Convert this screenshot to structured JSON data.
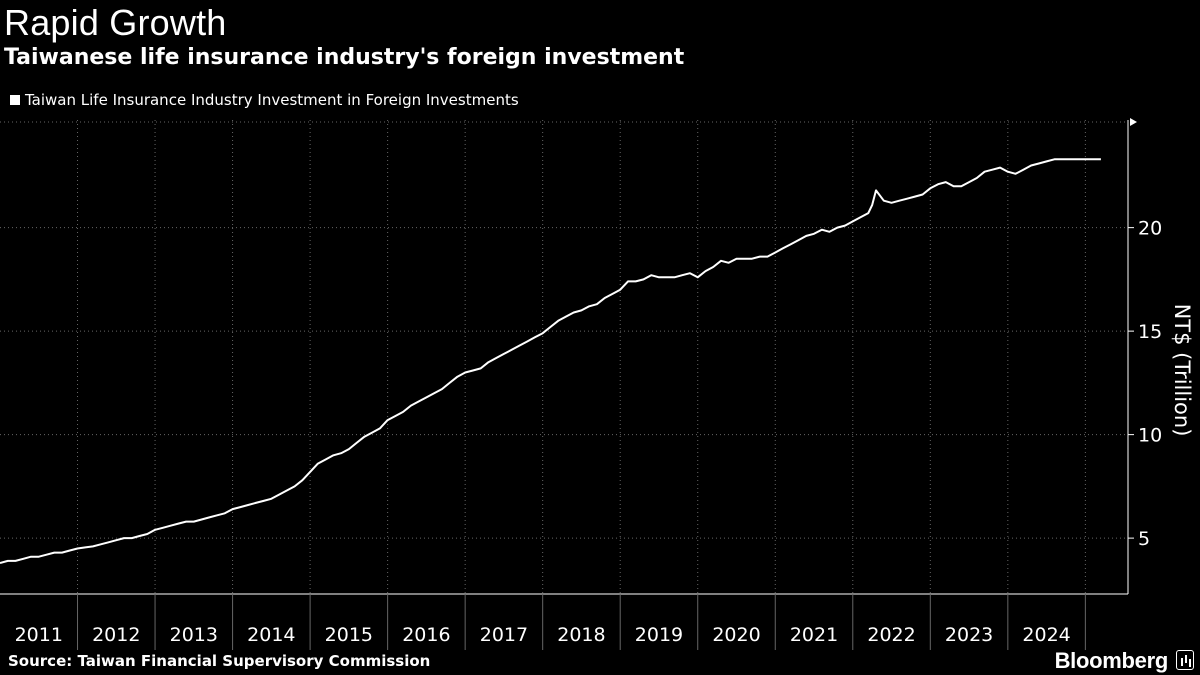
{
  "header": {
    "title": "Rapid Growth",
    "subtitle": "Taiwanese life insurance industry's foreign investment"
  },
  "footer": {
    "source": "Source: Taiwan Financial Supervisory Commission",
    "brand": "Bloomberg"
  },
  "colors": {
    "background": "#000000",
    "line": "#ffffff",
    "grid": "#666666"
  },
  "chart_data": {
    "type": "line",
    "title": "Rapid Growth",
    "subtitle": "Taiwanese life insurance industry's foreign investment",
    "xlabel": "",
    "ylabel": "NT$ (Trillion)",
    "ylim": [
      2.3,
      25.2
    ],
    "yticks": [
      5,
      10,
      15,
      20
    ],
    "xlim": [
      2011.0,
      2025.55
    ],
    "categories": [
      "2011",
      "2012",
      "2013",
      "2014",
      "2015",
      "2016",
      "2017",
      "2018",
      "2019",
      "2020",
      "2021",
      "2022",
      "2023",
      "2024"
    ],
    "grid": true,
    "legend_position": "top-left",
    "series": [
      {
        "name": "Taiwan Life Insurance Industry Investment in Foreign Investments",
        "x": [
          2011.0,
          2011.1,
          2011.2,
          2011.3,
          2011.4,
          2011.5,
          2011.6,
          2011.7,
          2011.8,
          2011.9,
          2012.0,
          2012.1,
          2012.2,
          2012.3,
          2012.4,
          2012.5,
          2012.6,
          2012.7,
          2012.8,
          2012.9,
          2013.0,
          2013.1,
          2013.2,
          2013.3,
          2013.4,
          2013.5,
          2013.6,
          2013.7,
          2013.8,
          2013.9,
          2014.0,
          2014.1,
          2014.2,
          2014.3,
          2014.4,
          2014.5,
          2014.6,
          2014.7,
          2014.8,
          2014.9,
          2015.0,
          2015.1,
          2015.2,
          2015.3,
          2015.4,
          2015.5,
          2015.6,
          2015.7,
          2015.8,
          2015.9,
          2016.0,
          2016.1,
          2016.2,
          2016.3,
          2016.4,
          2016.5,
          2016.6,
          2016.7,
          2016.8,
          2016.9,
          2017.0,
          2017.1,
          2017.2,
          2017.3,
          2017.4,
          2017.5,
          2017.6,
          2017.7,
          2017.8,
          2017.9,
          2018.0,
          2018.1,
          2018.2,
          2018.3,
          2018.4,
          2018.5,
          2018.6,
          2018.7,
          2018.8,
          2018.9,
          2019.0,
          2019.1,
          2019.2,
          2019.3,
          2019.4,
          2019.5,
          2019.6,
          2019.7,
          2019.8,
          2019.9,
          2020.0,
          2020.1,
          2020.2,
          2020.3,
          2020.4,
          2020.5,
          2020.6,
          2020.7,
          2020.8,
          2020.9,
          2021.0,
          2021.1,
          2021.2,
          2021.3,
          2021.4,
          2021.5,
          2021.6,
          2021.7,
          2021.8,
          2021.9,
          2022.0,
          2022.1,
          2022.2,
          2022.25,
          2022.3,
          2022.4,
          2022.5,
          2022.6,
          2022.7,
          2022.8,
          2022.9,
          2023.0,
          2023.1,
          2023.2,
          2023.3,
          2023.4,
          2023.5,
          2023.6,
          2023.7,
          2023.8,
          2023.9,
          2024.0,
          2024.1,
          2024.2,
          2024.3,
          2024.4,
          2024.5,
          2024.6,
          2024.7,
          2024.8,
          2024.9,
          2025.0,
          2025.1,
          2025.2
        ],
        "values": [
          3.8,
          3.9,
          3.9,
          4.0,
          4.1,
          4.1,
          4.2,
          4.3,
          4.3,
          4.4,
          4.5,
          4.55,
          4.6,
          4.7,
          4.8,
          4.9,
          5.0,
          5.0,
          5.1,
          5.2,
          5.4,
          5.5,
          5.6,
          5.7,
          5.8,
          5.8,
          5.9,
          6.0,
          6.1,
          6.2,
          6.4,
          6.5,
          6.6,
          6.7,
          6.8,
          6.9,
          7.1,
          7.3,
          7.5,
          7.8,
          8.2,
          8.6,
          8.8,
          9.0,
          9.1,
          9.3,
          9.6,
          9.9,
          10.1,
          10.3,
          10.7,
          10.9,
          11.1,
          11.4,
          11.6,
          11.8,
          12.0,
          12.2,
          12.5,
          12.8,
          13.0,
          13.1,
          13.2,
          13.5,
          13.7,
          13.9,
          14.1,
          14.3,
          14.5,
          14.7,
          14.9,
          15.2,
          15.5,
          15.7,
          15.9,
          16.0,
          16.2,
          16.3,
          16.6,
          16.8,
          17.0,
          17.4,
          17.4,
          17.5,
          17.7,
          17.6,
          17.6,
          17.6,
          17.7,
          17.8,
          17.6,
          17.9,
          18.1,
          18.4,
          18.3,
          18.5,
          18.5,
          18.5,
          18.6,
          18.6,
          18.8,
          19.0,
          19.2,
          19.4,
          19.6,
          19.7,
          19.9,
          19.8,
          20.0,
          20.1,
          20.3,
          20.5,
          20.7,
          21.1,
          21.8,
          21.3,
          21.2,
          21.3,
          21.4,
          21.5,
          21.6,
          21.9,
          22.1,
          22.2,
          22.0,
          22.0,
          22.2,
          22.4,
          22.7,
          22.8,
          22.9,
          22.7,
          22.6,
          22.8,
          23.0,
          23.1,
          23.2,
          23.3,
          23.3,
          23.3,
          23.3,
          23.3,
          23.3,
          23.3
        ]
      }
    ]
  }
}
